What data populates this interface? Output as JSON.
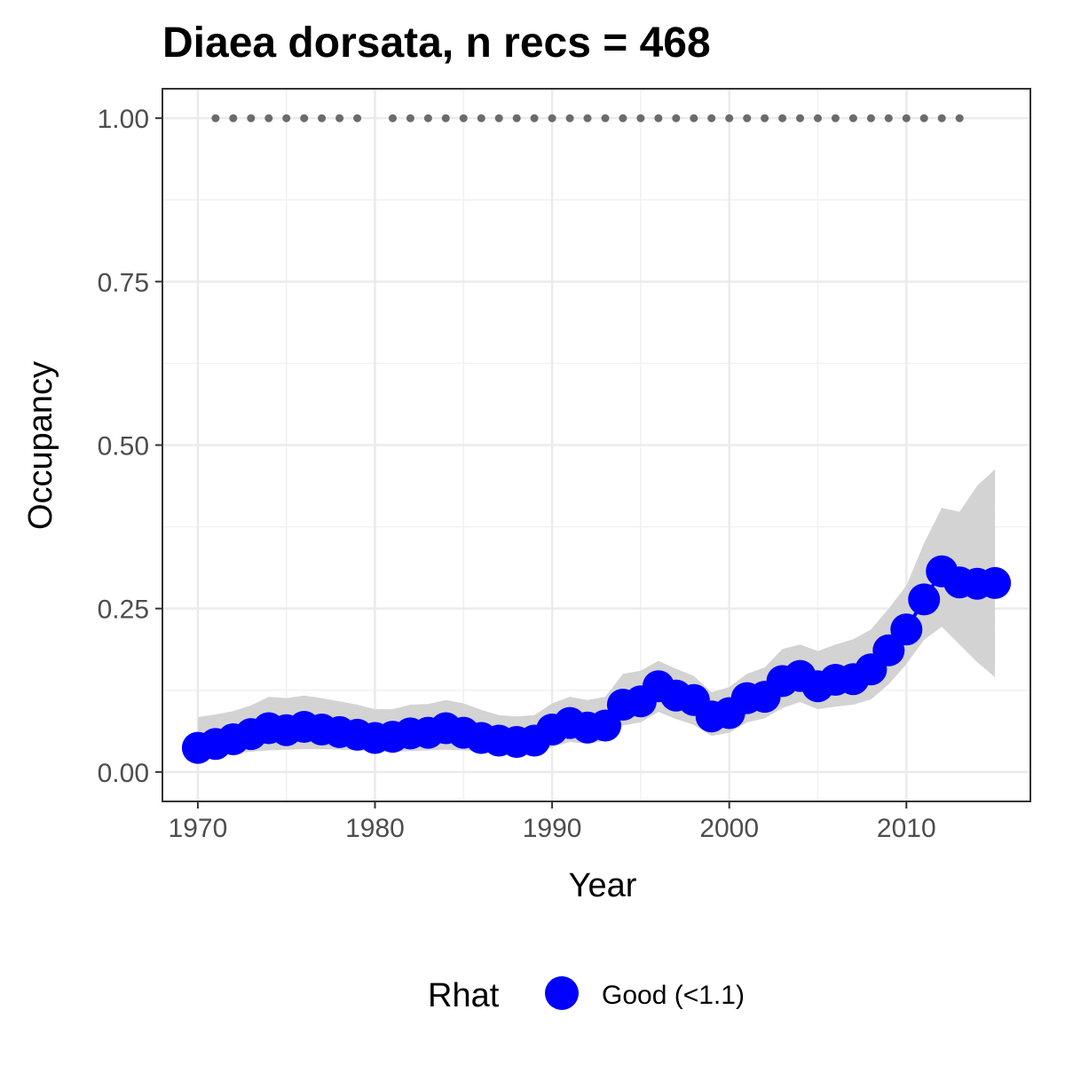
{
  "chart_data": {
    "type": "line",
    "title": "Diaea dorsata, n recs = 468",
    "xlabel": "Year",
    "ylabel": "Occupancy",
    "xlim": [
      1968,
      2017
    ],
    "ylim": [
      -0.045,
      1.045
    ],
    "x_ticks": [
      1970,
      1980,
      1990,
      2000,
      2010
    ],
    "x_tick_labels": [
      "1970",
      "1980",
      "1990",
      "2000",
      "2010"
    ],
    "y_ticks": [
      0,
      0.25,
      0.5,
      0.75,
      1.0
    ],
    "y_tick_labels": [
      "0.00",
      "0.25",
      "0.50",
      "0.75",
      "1.00"
    ],
    "grid": true,
    "legend_position": "bottom",
    "legend": {
      "title": "Rhat",
      "entries": [
        {
          "label": "Good (<1.1)",
          "color": "#0000ff"
        }
      ]
    },
    "colors": {
      "series": "#0000ff",
      "ribbon": "#d3d3d3",
      "record_marks": "#6b6b6b"
    },
    "series": [
      {
        "name": "Good (<1.1)",
        "x": [
          1970,
          1971,
          1972,
          1973,
          1974,
          1975,
          1976,
          1977,
          1978,
          1979,
          1980,
          1981,
          1982,
          1983,
          1984,
          1985,
          1986,
          1987,
          1988,
          1989,
          1990,
          1991,
          1992,
          1993,
          1994,
          1995,
          1996,
          1997,
          1998,
          1999,
          2000,
          2001,
          2002,
          2003,
          2004,
          2005,
          2006,
          2007,
          2008,
          2009,
          2010,
          2011,
          2012,
          2013,
          2014,
          2015
        ],
        "y": [
          0.037,
          0.043,
          0.05,
          0.058,
          0.067,
          0.064,
          0.069,
          0.065,
          0.061,
          0.057,
          0.052,
          0.054,
          0.059,
          0.06,
          0.067,
          0.06,
          0.052,
          0.048,
          0.046,
          0.048,
          0.065,
          0.075,
          0.068,
          0.071,
          0.103,
          0.108,
          0.131,
          0.117,
          0.11,
          0.085,
          0.09,
          0.113,
          0.115,
          0.139,
          0.147,
          0.131,
          0.141,
          0.142,
          0.157,
          0.186,
          0.218,
          0.264,
          0.307,
          0.29,
          0.288,
          0.289
        ],
        "lower": [
          0.022,
          0.025,
          0.028,
          0.031,
          0.033,
          0.034,
          0.035,
          0.035,
          0.034,
          0.033,
          0.031,
          0.031,
          0.032,
          0.033,
          0.034,
          0.033,
          0.031,
          0.029,
          0.028,
          0.029,
          0.038,
          0.046,
          0.043,
          0.048,
          0.071,
          0.076,
          0.092,
          0.081,
          0.072,
          0.055,
          0.06,
          0.076,
          0.082,
          0.098,
          0.107,
          0.096,
          0.1,
          0.103,
          0.111,
          0.134,
          0.165,
          0.202,
          0.222,
          0.195,
          0.168,
          0.145
        ],
        "upper": [
          0.084,
          0.088,
          0.093,
          0.102,
          0.115,
          0.113,
          0.117,
          0.113,
          0.108,
          0.103,
          0.096,
          0.096,
          0.103,
          0.104,
          0.11,
          0.105,
          0.095,
          0.087,
          0.085,
          0.087,
          0.105,
          0.115,
          0.11,
          0.115,
          0.15,
          0.155,
          0.17,
          0.158,
          0.147,
          0.122,
          0.13,
          0.15,
          0.16,
          0.188,
          0.195,
          0.185,
          0.195,
          0.203,
          0.218,
          0.25,
          0.285,
          0.35,
          0.404,
          0.398,
          0.438,
          0.463
        ]
      }
    ],
    "record_years": [
      1971,
      1972,
      1973,
      1974,
      1975,
      1976,
      1977,
      1978,
      1979,
      1981,
      1982,
      1983,
      1984,
      1985,
      1986,
      1987,
      1988,
      1989,
      1990,
      1991,
      1992,
      1993,
      1994,
      1995,
      1996,
      1997,
      1998,
      1999,
      2000,
      2001,
      2002,
      2003,
      2004,
      2005,
      2006,
      2007,
      2008,
      2009,
      2010,
      2011,
      2012,
      2013
    ],
    "record_y": 1.0
  }
}
